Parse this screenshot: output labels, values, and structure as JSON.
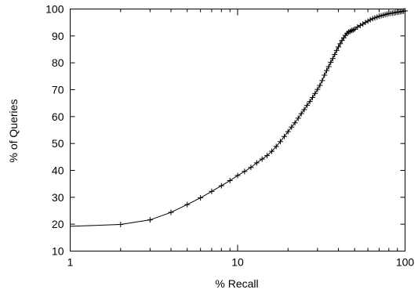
{
  "chart_data": {
    "type": "line",
    "title": "",
    "xlabel": "% Recall",
    "ylabel": "% of Queries",
    "x_scale": "log",
    "xlim": [
      1,
      100
    ],
    "ylim": [
      10,
      100
    ],
    "grid": false,
    "x_ticks": [
      {
        "value": 1,
        "label": "1"
      },
      {
        "value": 10,
        "label": "10"
      },
      {
        "value": 100,
        "label": "100"
      }
    ],
    "y_ticks": [
      {
        "value": 10,
        "label": "10"
      },
      {
        "value": 20,
        "label": "20"
      },
      {
        "value": 30,
        "label": "30"
      },
      {
        "value": 40,
        "label": "40"
      },
      {
        "value": 50,
        "label": "50"
      },
      {
        "value": 60,
        "label": "60"
      },
      {
        "value": 70,
        "label": "70"
      },
      {
        "value": 80,
        "label": "80"
      },
      {
        "value": 90,
        "label": "90"
      },
      {
        "value": 100,
        "label": "100"
      }
    ],
    "series": [
      {
        "marker": "plus",
        "x": [
          1,
          2,
          3,
          4,
          5,
          6,
          7,
          8,
          9,
          10,
          11,
          12,
          13,
          14,
          15,
          16,
          17,
          18,
          19,
          20,
          21,
          22,
          23,
          24,
          25,
          26,
          27,
          28,
          29,
          30,
          31,
          32,
          33,
          34,
          35,
          36,
          37,
          38,
          39,
          40,
          41,
          42,
          43,
          44,
          45,
          46,
          47,
          48,
          49,
          50,
          52,
          54,
          56,
          58,
          60,
          62,
          64,
          66,
          68,
          70,
          72,
          74,
          76,
          78,
          80,
          82,
          84,
          86,
          88,
          90,
          92,
          94,
          96,
          98,
          100
        ],
        "y": [
          19.2,
          19.9,
          21.6,
          24.4,
          27.3,
          29.8,
          32.2,
          34.3,
          36.2,
          38.1,
          39.6,
          41.1,
          42.8,
          44.2,
          45.5,
          47.1,
          48.9,
          50.7,
          52.6,
          54.4,
          56.1,
          57.7,
          59.4,
          61.1,
          62.6,
          64.2,
          65.6,
          67.1,
          68.6,
          70.1,
          71.6,
          73.4,
          75.4,
          77.1,
          78.6,
          80.2,
          81.6,
          83.1,
          84.6,
          85.9,
          87.1,
          88.3,
          89.3,
          90.2,
          90.9,
          91.4,
          91.7,
          92.0,
          92.2,
          92.5,
          93.3,
          93.9,
          94.4,
          95.0,
          95.5,
          96.0,
          96.4,
          96.7,
          97.0,
          97.3,
          97.5,
          97.7,
          97.9,
          98.1,
          98.3,
          98.4,
          98.5,
          98.6,
          98.7,
          98.8,
          98.9,
          99.0,
          99.1,
          99.2,
          99.3
        ]
      }
    ]
  }
}
